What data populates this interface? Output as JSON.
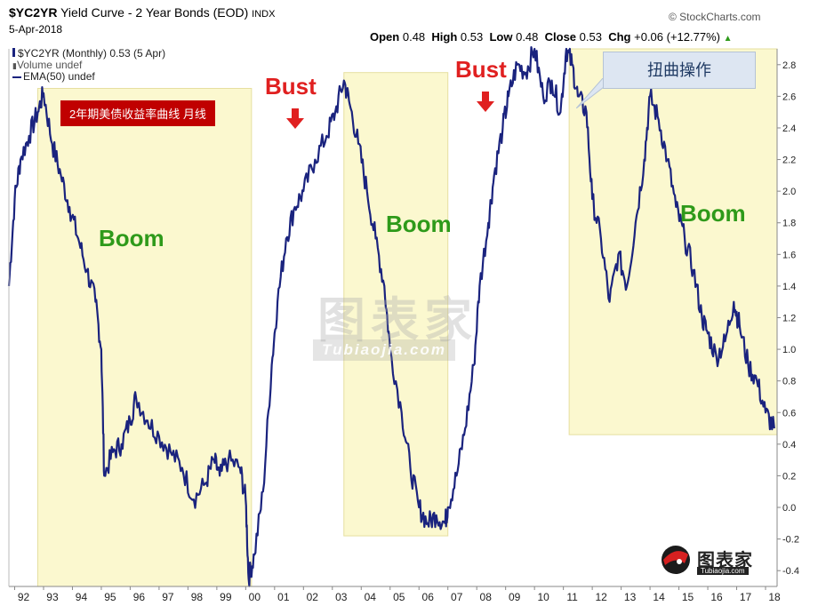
{
  "header": {
    "symbol": "$YC2YR",
    "title": "Yield Curve - 2 Year Bonds (EOD)",
    "exchange": "INDX",
    "date": "5-Apr-2018",
    "brand": "© StockCharts.com",
    "ohlc": {
      "open_label": "Open",
      "open": "0.48",
      "high_label": "High",
      "high": "0.53",
      "low_label": "Low",
      "low": "0.48",
      "close_label": "Close",
      "close": "0.53",
      "chg_label": "Chg",
      "chg": "+0.06 (+12.77%)"
    }
  },
  "legend": {
    "series": "$YC2YR (Monthly) 0.53 (5 Apr)",
    "volume": "Volume undef",
    "ema": "EMA(50) undef"
  },
  "annotations": {
    "red_box": "2年期美债收益率曲线 月线",
    "bust": "Bust",
    "boom": "Boom",
    "twist": "扭曲操作",
    "watermark_cn": "图表家",
    "watermark_en": "Tubiaojia.com"
  },
  "colors": {
    "line": "#1a237e",
    "boom_zone": "#fbf8cf",
    "bust_text": "#e02020",
    "boom_text": "#2e9a1a",
    "red_box": "#c00000"
  },
  "chart_data": {
    "type": "line",
    "title": "Yield Curve - 2 Year Bonds (EOD)",
    "xlabel": "",
    "ylabel": "",
    "x_ticks": [
      "92",
      "93",
      "94",
      "95",
      "96",
      "97",
      "98",
      "99",
      "00",
      "01",
      "02",
      "03",
      "04",
      "05",
      "06",
      "07",
      "08",
      "09",
      "10",
      "11",
      "12",
      "13",
      "14",
      "15",
      "16",
      "17",
      "18"
    ],
    "y_ticks": [
      -0.4,
      -0.2,
      0.0,
      0.2,
      0.4,
      0.6,
      0.8,
      1.0,
      1.2,
      1.4,
      1.6,
      1.8,
      2.0,
      2.2,
      2.4,
      2.6,
      2.8
    ],
    "ylim": [
      -0.5,
      2.9
    ],
    "xlim": [
      1991.8,
      2018.4
    ],
    "grid": false,
    "shaded_regions": [
      {
        "label": "Boom",
        "x": [
          1992.8,
          2000.2
        ]
      },
      {
        "label": "Boom",
        "x": [
          2003.4,
          2007.0
        ]
      },
      {
        "label": "Boom",
        "x": [
          2011.2,
          2018.4
        ]
      }
    ],
    "series": [
      {
        "name": "$YC2YR (Monthly)",
        "x": [
          1991.8,
          1992.0,
          1992.2,
          1992.5,
          1992.8,
          1993.0,
          1993.3,
          1993.6,
          1993.9,
          1994.2,
          1994.5,
          1994.8,
          1995.0,
          1995.1,
          1995.4,
          1995.7,
          1996.0,
          1996.2,
          1996.6,
          1997.0,
          1997.4,
          1997.8,
          1998.2,
          1998.6,
          1998.9,
          1999.1,
          1999.4,
          1999.8,
          2000.0,
          2000.1,
          2000.3,
          2000.6,
          2000.9,
          2001.1,
          2001.4,
          2001.7,
          2002.0,
          2002.4,
          2002.8,
          2003.1,
          2003.4,
          2003.6,
          2003.9,
          2004.2,
          2004.5,
          2004.8,
          2005.0,
          2005.4,
          2005.7,
          2006.0,
          2006.3,
          2006.6,
          2006.9,
          2007.0,
          2007.3,
          2007.6,
          2007.9,
          2008.1,
          2008.4,
          2008.6,
          2008.9,
          2009.1,
          2009.4,
          2009.7,
          2010.0,
          2010.3,
          2010.6,
          2010.9,
          2011.1,
          2011.3,
          2011.5,
          2011.8,
          2012.0,
          2012.3,
          2012.6,
          2012.9,
          2013.2,
          2013.5,
          2013.8,
          2014.0,
          2014.3,
          2014.6,
          2014.9,
          2015.2,
          2015.5,
          2015.8,
          2016.0,
          2016.3,
          2016.6,
          2016.9,
          2017.1,
          2017.4,
          2017.7,
          2018.0,
          2018.3
        ],
        "values": [
          1.4,
          1.95,
          2.2,
          2.35,
          2.5,
          2.62,
          2.3,
          2.1,
          1.9,
          1.7,
          1.5,
          1.3,
          1.0,
          0.2,
          0.35,
          0.4,
          0.55,
          0.7,
          0.55,
          0.45,
          0.35,
          0.25,
          0.05,
          0.15,
          0.3,
          0.2,
          0.3,
          0.25,
          0.05,
          -0.45,
          -0.3,
          0.1,
          0.9,
          1.3,
          1.7,
          1.9,
          2.0,
          2.2,
          2.35,
          2.5,
          2.7,
          2.55,
          2.3,
          2.0,
          1.7,
          1.4,
          1.0,
          0.6,
          0.25,
          0.0,
          -0.1,
          -0.05,
          -0.1,
          0.0,
          0.2,
          0.5,
          0.9,
          1.4,
          1.8,
          2.1,
          2.4,
          2.6,
          2.8,
          2.75,
          2.9,
          2.6,
          2.7,
          2.5,
          2.9,
          2.8,
          2.6,
          2.5,
          1.95,
          1.7,
          1.3,
          1.6,
          1.4,
          1.8,
          2.2,
          2.6,
          2.45,
          2.2,
          1.9,
          1.7,
          1.5,
          1.2,
          1.1,
          0.95,
          1.05,
          1.3,
          1.15,
          0.9,
          0.8,
          0.6,
          0.5
        ]
      }
    ]
  }
}
